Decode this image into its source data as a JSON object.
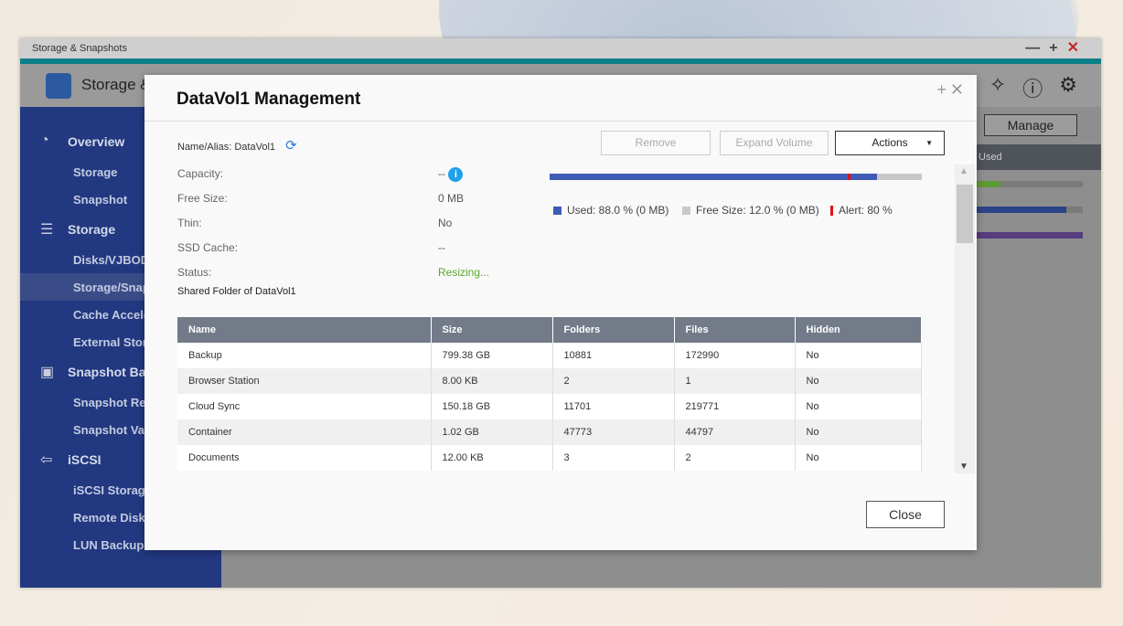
{
  "window": {
    "title": "Storage & Snapshots",
    "app_name": "Storage & Snapshots"
  },
  "sidebar": {
    "groups": [
      {
        "label": "Overview",
        "items": [
          "Storage",
          "Snapshot"
        ]
      },
      {
        "label": "Storage",
        "items": [
          "Disks/VJBOD",
          "Storage/Snapshots",
          "Cache Acceleration",
          "External Storage"
        ]
      },
      {
        "label": "Snapshot Backup",
        "items": [
          "Snapshot Replica",
          "Snapshot Vault"
        ]
      },
      {
        "label": "iSCSI",
        "items": [
          "iSCSI Storage",
          "Remote Disk",
          "LUN Backup"
        ]
      }
    ],
    "selected": "Storage/Snapshots"
  },
  "background": {
    "manage_label": "Manage",
    "column": "Used"
  },
  "dialog": {
    "title": "DataVol1  Management",
    "name_label": "Name/Alias:",
    "name_value": "DataVol1",
    "buttons": {
      "remove": "Remove",
      "expand": "Expand Volume",
      "actions": "Actions",
      "close": "Close"
    },
    "fields": [
      {
        "label": "Capacity:",
        "value": "--"
      },
      {
        "label": "Free Size:",
        "value": "0 MB"
      },
      {
        "label": "Thin:",
        "value": "No"
      },
      {
        "label": "SSD Cache:",
        "value": "--"
      },
      {
        "label": "Status:",
        "value": "Resizing..."
      }
    ],
    "usage": {
      "used_pct": 88.0,
      "alert_pct": 80,
      "legend_used": "Used: 88.0 % (0 MB)",
      "legend_free": "Free Size: 12.0 % (0 MB)",
      "legend_alert": "Alert: 80 %",
      "colors": {
        "used": "#3f5bb5",
        "free": "#c8c8c8",
        "alert": "#e0101a"
      }
    },
    "shared_title": "Shared Folder of DataVol1",
    "table": {
      "headers": [
        "Name",
        "Size",
        "Folders",
        "Files",
        "Hidden"
      ],
      "rows": [
        [
          "Backup",
          "799.38 GB",
          "10881",
          "172990",
          "No"
        ],
        [
          "Browser Station",
          "8.00 KB",
          "2",
          "1",
          "No"
        ],
        [
          "Cloud Sync",
          "150.18 GB",
          "11701",
          "219771",
          "No"
        ],
        [
          "Container",
          "1.02 GB",
          "47773",
          "44797",
          "No"
        ],
        [
          "Documents",
          "12.00 KB",
          "3",
          "2",
          "No"
        ]
      ]
    }
  }
}
